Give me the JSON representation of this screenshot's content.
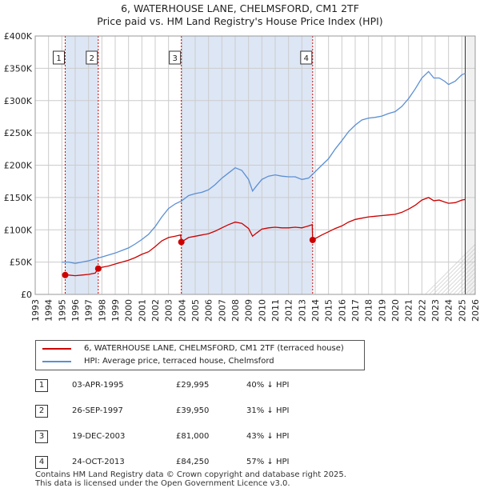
{
  "title_line1": "6, WATERHOUSE LANE, CHELMSFORD, CM1 2TF",
  "title_line2": "Price paid vs. HM Land Registry's House Price Index (HPI)",
  "legend": {
    "property_label": "6, WATERHOUSE LANE, CHELMSFORD, CM1 2TF (terraced house)",
    "hpi_label": "HPI: Average price, terraced house, Chelmsford"
  },
  "colors": {
    "property": "#cc0000",
    "hpi": "#5b8fd4",
    "shade": "#dde6f5",
    "grid": "#cccccc"
  },
  "sales": [
    {
      "num": "1",
      "date": "03-APR-1995",
      "price": "£29,995",
      "hpi": "40% ↓ HPI"
    },
    {
      "num": "2",
      "date": "26-SEP-1997",
      "price": "£39,950",
      "hpi": "31% ↓ HPI"
    },
    {
      "num": "3",
      "date": "19-DEC-2003",
      "price": "£81,000",
      "hpi": "43% ↓ HPI"
    },
    {
      "num": "4",
      "date": "24-OCT-2013",
      "price": "£84,250",
      "hpi": "57% ↓ HPI"
    }
  ],
  "footer_line1": "Contains HM Land Registry data © Crown copyright and database right 2025.",
  "footer_line2": "This data is licensed under the Open Government Licence v3.0.",
  "chart_data": {
    "type": "line",
    "title": "6, WATERHOUSE LANE, CHELMSFORD, CM1 2TF",
    "subtitle": "Price paid vs. HM Land Registry's House Price Index (HPI)",
    "xlim": [
      1993,
      2026
    ],
    "ylim": [
      0,
      400000
    ],
    "x_ticks": [
      1993,
      1994,
      1995,
      1996,
      1997,
      1998,
      1999,
      2000,
      2001,
      2002,
      2003,
      2004,
      2005,
      2006,
      2007,
      2008,
      2009,
      2010,
      2011,
      2012,
      2013,
      2014,
      2015,
      2016,
      2017,
      2018,
      2019,
      2020,
      2021,
      2022,
      2023,
      2024,
      2025,
      2026
    ],
    "y_ticks": [
      {
        "value": 0,
        "label": "£0"
      },
      {
        "value": 50000,
        "label": "£50K"
      },
      {
        "value": 100000,
        "label": "£100K"
      },
      {
        "value": 150000,
        "label": "£150K"
      },
      {
        "value": 200000,
        "label": "£200K"
      },
      {
        "value": 250000,
        "label": "£250K"
      },
      {
        "value": 300000,
        "label": "£300K"
      },
      {
        "value": 350000,
        "label": "£350K"
      },
      {
        "value": 400000,
        "label": "£400K"
      }
    ],
    "grid": true,
    "shaded_ranges": [
      [
        1995.25,
        1997.73
      ],
      [
        2003.96,
        2013.81
      ]
    ],
    "data_end": 2025.25,
    "sale_markers": [
      {
        "label": "1",
        "x": 1995.25,
        "y": 29995
      },
      {
        "label": "2",
        "x": 1997.73,
        "y": 39950
      },
      {
        "label": "3",
        "x": 2003.96,
        "y": 81000
      },
      {
        "label": "4",
        "x": 2013.81,
        "y": 84250
      }
    ],
    "series": [
      {
        "name": "HPI: Average price, terraced house, Chelmsford",
        "x": [
          1995.0,
          1995.5,
          1996.0,
          1996.5,
          1997.0,
          1997.5,
          1998.0,
          1998.5,
          1999.0,
          1999.5,
          2000.0,
          2000.5,
          2001.0,
          2001.5,
          2002.0,
          2002.5,
          2003.0,
          2003.5,
          2004.0,
          2004.5,
          2005.0,
          2005.5,
          2006.0,
          2006.5,
          2007.0,
          2007.5,
          2008.0,
          2008.5,
          2009.0,
          2009.3,
          2009.6,
          2010.0,
          2010.5,
          2011.0,
          2011.5,
          2012.0,
          2012.5,
          2013.0,
          2013.5,
          2014.0,
          2014.5,
          2015.0,
          2015.5,
          2016.0,
          2016.5,
          2017.0,
          2017.5,
          2018.0,
          2018.5,
          2019.0,
          2019.5,
          2020.0,
          2020.5,
          2021.0,
          2021.5,
          2022.0,
          2022.5,
          2022.9,
          2023.3,
          2023.7,
          2024.0,
          2024.5,
          2025.0,
          2025.25
        ],
        "values": [
          50000,
          50000,
          48000,
          50000,
          52000,
          55000,
          58000,
          61000,
          64000,
          68000,
          72000,
          78000,
          85000,
          93000,
          105000,
          120000,
          133000,
          140000,
          145000,
          153000,
          156000,
          158000,
          162000,
          170000,
          180000,
          188000,
          196000,
          192000,
          178000,
          160000,
          168000,
          178000,
          183000,
          185000,
          183000,
          182000,
          182000,
          178000,
          180000,
          190000,
          200000,
          210000,
          225000,
          238000,
          252000,
          262000,
          270000,
          273000,
          274000,
          276000,
          280000,
          283000,
          291000,
          303000,
          318000,
          335000,
          345000,
          335000,
          335000,
          330000,
          325000,
          330000,
          340000,
          342000
        ]
      },
      {
        "name": "6, WATERHOUSE LANE, CHELMSFORD, CM1 2TF (terraced house)",
        "x": [
          1995.25,
          1995.5,
          1996.0,
          1996.5,
          1997.0,
          1997.5,
          1997.73,
          1998.0,
          1998.5,
          1999.0,
          1999.5,
          2000.0,
          2000.5,
          2001.0,
          2001.5,
          2002.0,
          2002.5,
          2003.0,
          2003.5,
          2003.9,
          2003.96,
          2004.5,
          2005.0,
          2005.5,
          2006.0,
          2006.5,
          2007.0,
          2007.5,
          2008.0,
          2008.5,
          2009.0,
          2009.3,
          2009.6,
          2010.0,
          2010.5,
          2011.0,
          2011.5,
          2012.0,
          2012.5,
          2013.0,
          2013.5,
          2013.78,
          2013.81,
          2014.5,
          2015.0,
          2015.5,
          2016.0,
          2016.5,
          2017.0,
          2017.5,
          2018.0,
          2018.5,
          2019.0,
          2019.5,
          2020.0,
          2020.5,
          2021.0,
          2021.5,
          2022.0,
          2022.5,
          2022.9,
          2023.3,
          2023.7,
          2024.0,
          2024.5,
          2025.0,
          2025.25
        ],
        "values": [
          29995,
          30000,
          29000,
          30000,
          31000,
          33000,
          39950,
          42000,
          44000,
          47000,
          50000,
          53000,
          57000,
          62000,
          66000,
          74000,
          83000,
          88000,
          90000,
          92000,
          81000,
          88000,
          90000,
          92000,
          94000,
          98000,
          103000,
          108000,
          112000,
          110000,
          102000,
          90000,
          95000,
          101000,
          103000,
          104000,
          103000,
          103000,
          104000,
          103000,
          106000,
          108000,
          84250,
          92000,
          97000,
          102000,
          106000,
          112000,
          116000,
          118000,
          120000,
          121000,
          122000,
          123000,
          124000,
          127000,
          132000,
          138000,
          146000,
          150000,
          145000,
          146000,
          143000,
          141000,
          142000,
          146000,
          147000
        ]
      }
    ]
  }
}
